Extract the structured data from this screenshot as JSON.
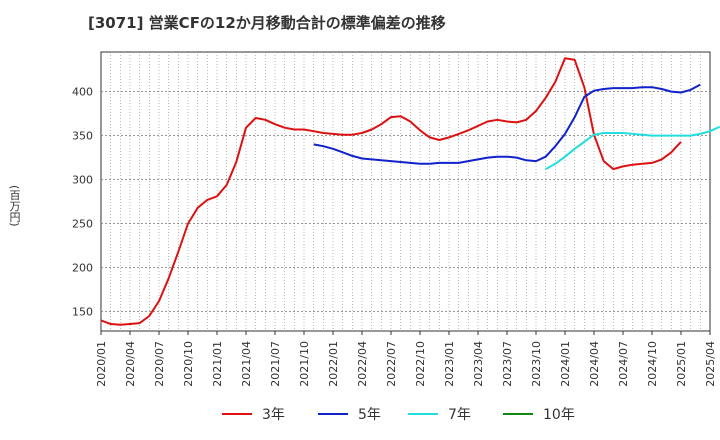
{
  "chart_data": {
    "type": "line",
    "title": "[3071]  営業CFの12か月移動合計の標準偏差の推移",
    "ylabel": "(百万円)",
    "xlabel": "",
    "ylim": [
      128,
      445
    ],
    "yticks": [
      150,
      200,
      250,
      300,
      350,
      400
    ],
    "xtick_labels": [
      "2020/01",
      "2020/04",
      "2020/07",
      "2020/10",
      "2021/01",
      "2021/04",
      "2021/07",
      "2021/10",
      "2022/01",
      "2022/04",
      "2022/07",
      "2022/10",
      "2023/01",
      "2023/04",
      "2023/07",
      "2023/10",
      "2024/01",
      "2024/04",
      "2024/07",
      "2024/10",
      "2025/01",
      "2025/04"
    ],
    "grid": true,
    "legend_position": "bottom",
    "series": [
      {
        "name": "3年",
        "color": "#dd1111",
        "start_index": 0,
        "values": [
          140,
          136,
          135,
          136,
          137,
          145,
          162,
          188,
          218,
          250,
          268,
          277,
          281,
          294,
          320,
          359,
          370,
          368,
          363,
          359,
          357,
          357,
          355,
          353,
          352,
          351,
          351,
          353,
          357,
          363,
          371,
          372,
          366,
          356,
          348,
          345,
          348,
          352,
          356,
          361,
          366,
          368,
          366,
          365,
          368,
          378,
          393,
          411,
          438,
          436,
          405,
          351,
          321,
          312,
          315,
          317,
          318,
          319,
          323,
          331,
          343
        ]
      },
      {
        "name": "5年",
        "color": "#1122cc",
        "start_index": 22,
        "values": [
          340,
          338,
          335,
          331,
          327,
          324,
          323,
          322,
          321,
          320,
          319,
          318,
          318,
          319,
          319,
          319,
          321,
          323,
          325,
          326,
          326,
          325,
          322,
          321,
          326,
          338,
          352,
          371,
          394,
          401,
          403,
          404,
          404,
          404,
          405,
          405,
          403,
          400,
          399,
          402,
          408
        ]
      },
      {
        "name": "7年",
        "color": "#22dddd",
        "start_index": 46,
        "values": [
          312,
          318,
          326,
          335,
          343,
          351,
          353,
          353,
          353,
          352,
          351,
          350,
          350,
          350,
          350,
          350,
          352,
          355,
          360
        ]
      },
      {
        "name": "10年",
        "color": "#118811",
        "start_index": 0,
        "values": []
      }
    ]
  }
}
